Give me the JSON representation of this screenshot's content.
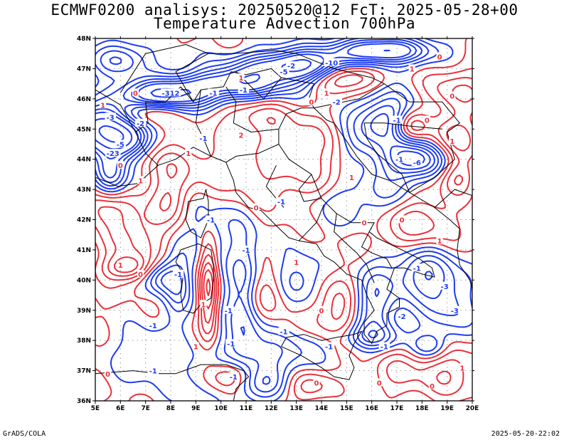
{
  "header": {
    "line1": "ECMWF0200 analisys: 20250520@12 FcT: 2025-05-28+00",
    "line2": "Temperature Advection 700hPa"
  },
  "footer": {
    "left": "GrADS/COLA",
    "right": "2025-05-20-22:02"
  },
  "map": {
    "lon_range": [
      5,
      20
    ],
    "lat_range": [
      36,
      48
    ],
    "lon_ticks": [
      "5E",
      "6E",
      "7E",
      "8E",
      "9E",
      "10E",
      "11E",
      "12E",
      "13E",
      "14E",
      "15E",
      "16E",
      "17E",
      "18E",
      "19E",
      "20E"
    ],
    "lat_ticks": [
      "36N",
      "37N",
      "38N",
      "39N",
      "40N",
      "41N",
      "42N",
      "43N",
      "44N",
      "45N",
      "46N",
      "47N",
      "48N"
    ],
    "grid": "dotted",
    "colors": {
      "positive": "#e8323c",
      "negative": "#1e3cf0",
      "border": "#000000",
      "grid": "#9a9a9a"
    },
    "contour_labels": [
      {
        "text": "0",
        "lon": 5.5,
        "lat": 36.9,
        "sign": "pos"
      },
      {
        "text": "-1",
        "lon": 7.3,
        "lat": 37.0,
        "sign": "neg"
      },
      {
        "text": "1",
        "lon": 9.0,
        "lat": 37.8,
        "sign": "pos"
      },
      {
        "text": "-1",
        "lon": 10.4,
        "lat": 37.9,
        "sign": "neg"
      },
      {
        "text": "-1",
        "lon": 12.5,
        "lat": 38.3,
        "sign": "neg"
      },
      {
        "text": "0",
        "lon": 14.0,
        "lat": 39.0,
        "sign": "pos"
      },
      {
        "text": "-1",
        "lon": 10.3,
        "lat": 39.0,
        "sign": "neg"
      },
      {
        "text": "1",
        "lon": 9.3,
        "lat": 39.2,
        "sign": "pos"
      },
      {
        "text": "-1",
        "lon": 8.3,
        "lat": 40.2,
        "sign": "neg"
      },
      {
        "text": "0",
        "lon": 6.8,
        "lat": 40.2,
        "sign": "pos"
      },
      {
        "text": "1",
        "lon": 13.0,
        "lat": 40.6,
        "sign": "pos"
      },
      {
        "text": "-1",
        "lon": 17.8,
        "lat": 40.4,
        "sign": "neg"
      },
      {
        "text": "-3",
        "lon": 18.9,
        "lat": 39.8,
        "sign": "neg"
      },
      {
        "text": "-3",
        "lon": 19.3,
        "lat": 39.0,
        "sign": "neg"
      },
      {
        "text": "-2",
        "lon": 17.2,
        "lat": 38.8,
        "sign": "neg"
      },
      {
        "text": "1",
        "lon": 19.6,
        "lat": 37.1,
        "sign": "pos"
      },
      {
        "text": "0",
        "lon": 18.4,
        "lat": 36.5,
        "sign": "pos"
      },
      {
        "text": "-1",
        "lon": 16.5,
        "lat": 37.8,
        "sign": "neg"
      },
      {
        "text": "0",
        "lon": 15.7,
        "lat": 41.9,
        "sign": "pos"
      },
      {
        "text": "0",
        "lon": 17.2,
        "lat": 42.0,
        "sign": "pos"
      },
      {
        "text": "1",
        "lon": 18.7,
        "lat": 41.3,
        "sign": "pos"
      },
      {
        "text": "1",
        "lon": 15.2,
        "lat": 43.4,
        "sign": "pos"
      },
      {
        "text": "-1",
        "lon": 12.4,
        "lat": 42.6,
        "sign": "neg"
      },
      {
        "text": "0",
        "lon": 11.4,
        "lat": 42.4,
        "sign": "pos"
      },
      {
        "text": "-1",
        "lon": 9.6,
        "lat": 42.0,
        "sign": "neg"
      },
      {
        "text": "1",
        "lon": 8.7,
        "lat": 44.2,
        "sign": "pos"
      },
      {
        "text": "-1",
        "lon": 9.3,
        "lat": 44.7,
        "sign": "neg"
      },
      {
        "text": "0",
        "lon": 6.0,
        "lat": 43.8,
        "sign": "pos"
      },
      {
        "text": "-23",
        "lon": 5.7,
        "lat": 44.2,
        "sign": "neg"
      },
      {
        "text": "-5",
        "lon": 6.0,
        "lat": 44.5,
        "sign": "neg"
      },
      {
        "text": "-3",
        "lon": 5.6,
        "lat": 45.4,
        "sign": "neg"
      },
      {
        "text": "1",
        "lon": 5.3,
        "lat": 45.8,
        "sign": "pos"
      },
      {
        "text": "-2",
        "lon": 6.8,
        "lat": 45.2,
        "sign": "neg"
      },
      {
        "text": "-312",
        "lon": 8.0,
        "lat": 46.2,
        "sign": "neg"
      },
      {
        "text": "0",
        "lon": 6.6,
        "lat": 46.2,
        "sign": "pos"
      },
      {
        "text": "-1",
        "lon": 9.7,
        "lat": 46.2,
        "sign": "neg"
      },
      {
        "text": "-1",
        "lon": 10.9,
        "lat": 46.3,
        "sign": "neg"
      },
      {
        "text": "-5",
        "lon": 12.5,
        "lat": 46.9,
        "sign": "neg"
      },
      {
        "text": "-2",
        "lon": 12.8,
        "lat": 47.1,
        "sign": "neg"
      },
      {
        "text": "-10",
        "lon": 14.4,
        "lat": 47.2,
        "sign": "neg"
      },
      {
        "text": "1",
        "lon": 14.2,
        "lat": 46.2,
        "sign": "pos"
      },
      {
        "text": "-2",
        "lon": 14.6,
        "lat": 45.9,
        "sign": "neg"
      },
      {
        "text": "0",
        "lon": 13.6,
        "lat": 45.9,
        "sign": "pos"
      },
      {
        "text": "1",
        "lon": 10.8,
        "lat": 46.7,
        "sign": "pos"
      },
      {
        "text": "2",
        "lon": 10.8,
        "lat": 44.8,
        "sign": "pos"
      },
      {
        "text": "-1",
        "lon": 17.0,
        "lat": 45.3,
        "sign": "neg"
      },
      {
        "text": "0",
        "lon": 18.2,
        "lat": 45.3,
        "sign": "pos"
      },
      {
        "text": "-6",
        "lon": 17.8,
        "lat": 43.9,
        "sign": "neg"
      },
      {
        "text": "-1",
        "lon": 17.1,
        "lat": 44.0,
        "sign": "neg"
      },
      {
        "text": "1",
        "lon": 19.2,
        "lat": 44.6,
        "sign": "pos"
      },
      {
        "text": "1",
        "lon": 6.8,
        "lat": 43.3,
        "sign": "pos"
      },
      {
        "text": "-1",
        "lon": 11.0,
        "lat": 41.0,
        "sign": "neg"
      },
      {
        "text": "-1",
        "lon": 14.3,
        "lat": 37.8,
        "sign": "neg"
      },
      {
        "text": "-1",
        "lon": 10.5,
        "lat": 36.8,
        "sign": "neg"
      },
      {
        "text": "0",
        "lon": 13.8,
        "lat": 36.6,
        "sign": "pos"
      },
      {
        "text": "0",
        "lon": 16.3,
        "lat": 36.6,
        "sign": "pos"
      },
      {
        "text": "0",
        "lon": 19.2,
        "lat": 46.1,
        "sign": "pos"
      },
      {
        "text": "0",
        "lon": 18.7,
        "lat": 47.4,
        "sign": "pos"
      },
      {
        "text": "1",
        "lon": 17.6,
        "lat": 47.0,
        "sign": "pos"
      },
      {
        "text": "1",
        "lon": 6.0,
        "lat": 40.5,
        "sign": "pos"
      },
      {
        "text": "-1",
        "lon": 7.3,
        "lat": 38.5,
        "sign": "neg"
      }
    ]
  }
}
